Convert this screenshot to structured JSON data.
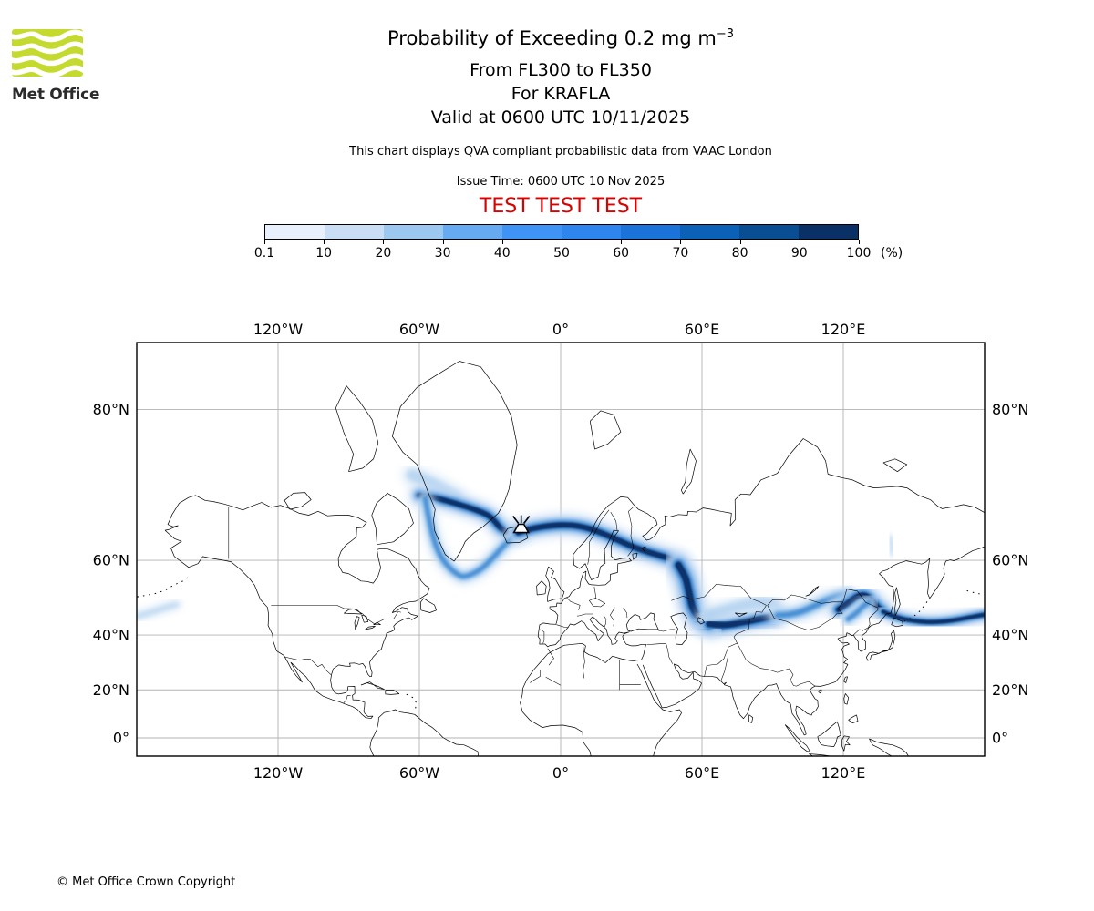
{
  "header": {
    "logo_text": "Met Office",
    "logo_green": "#c5da2f",
    "title_main": "Probability of Exceeding 0.2 mg m",
    "title_sup": "−3",
    "line_levels": "From FL300 to FL350",
    "line_volcano": "For KRAFLA",
    "line_valid": "Valid at 0600 UTC 10/11/2025",
    "note": "This chart displays QVA compliant probabilistic data from VAAC London",
    "issue_time": "Issue Time: 0600 UTC 10 Nov 2025",
    "test_banner": "TEST TEST TEST",
    "test_color": "#dd0000"
  },
  "colorbar": {
    "tick_labels": [
      "0.1",
      "10",
      "20",
      "30",
      "40",
      "50",
      "60",
      "70",
      "80",
      "90",
      "100"
    ],
    "unit": "(%)",
    "colors": [
      "#e8f1fb",
      "#c9ddf5",
      "#9cc8ef",
      "#66aaf2",
      "#3f93f4",
      "#2e85ee",
      "#1b72d8",
      "#0a61b6",
      "#094d92",
      "#0a3166"
    ]
  },
  "footer": {
    "copyright": "© Met Office Crown Copyright"
  },
  "chart_data": {
    "type": "heatmap",
    "title": "Probability of Exceeding 0.2 mg m⁻³",
    "subtitle": [
      "From FL300 to FL350",
      "For KRAFLA",
      "Valid at 0600 UTC 10/11/2025"
    ],
    "issue_time": "0600 UTC 10 Nov 2025",
    "legend_position": "top",
    "grid": true,
    "projection": "mercator",
    "lon_range": [
      -180,
      180
    ],
    "lat_range": [
      -7.7,
      84
    ],
    "scale_percent_thresholds": [
      0.1,
      10,
      20,
      30,
      40,
      50,
      60,
      70,
      80,
      90,
      100
    ],
    "scale_unit": "%",
    "lon_ticks": [
      {
        "value": -120,
        "label": "120°W"
      },
      {
        "value": -60,
        "label": "60°W"
      },
      {
        "value": 0,
        "label": "0°"
      },
      {
        "value": 60,
        "label": "60°E"
      },
      {
        "value": 120,
        "label": "120°E"
      }
    ],
    "lat_ticks": [
      {
        "value": 80,
        "label": "80°N"
      },
      {
        "value": 60,
        "label": "60°N"
      },
      {
        "value": 40,
        "label": "40°N"
      },
      {
        "value": 20,
        "label": "20°N"
      },
      {
        "value": 0,
        "label": "0°"
      }
    ],
    "volcano_marker": {
      "name": "KRAFLA",
      "lon": -16.78,
      "lat": 65.73
    },
    "plume_bands": [
      {
        "name": "greenland-fan",
        "intensity": "diffuse",
        "w": 1.6,
        "pts": [
          [
            -63,
            73.8
          ],
          [
            -58,
            73.2
          ],
          [
            -53,
            72.5
          ],
          [
            -48,
            71.6
          ],
          [
            -44,
            70.8
          ]
        ]
      },
      {
        "name": "greenland-cross",
        "intensity": "dense",
        "w": 1.15,
        "pts": [
          [
            -60,
            71.2
          ],
          [
            -54,
            70.9
          ],
          [
            -48,
            70.4
          ],
          [
            -42,
            69.8
          ],
          [
            -36,
            69.1
          ],
          [
            -31,
            68.3
          ],
          [
            -28,
            67.3
          ],
          [
            -25.5,
            66.2
          ],
          [
            -21.5,
            65.1
          ],
          [
            -18,
            65.4
          ]
        ]
      },
      {
        "name": "west-greenland-arc",
        "intensity": "medium",
        "w": 1.0,
        "pts": [
          [
            -57.5,
            70.8
          ],
          [
            -56,
            68
          ],
          [
            -54.5,
            65.3
          ],
          [
            -52.5,
            62.5
          ],
          [
            -50,
            60.2
          ],
          [
            -47,
            58.3
          ],
          [
            -44,
            57
          ],
          [
            -41.5,
            56.4
          ],
          [
            -37.5,
            57
          ],
          [
            -33,
            58.5
          ],
          [
            -28.5,
            60.7
          ],
          [
            -24.5,
            62.8
          ],
          [
            -20.5,
            64.5
          ],
          [
            -18,
            65.4
          ]
        ]
      },
      {
        "name": "main-east-track",
        "intensity": "dense",
        "w": 1.2,
        "pts": [
          [
            -18,
            65.4
          ],
          [
            -12,
            66.1
          ],
          [
            -6,
            66.5
          ],
          [
            0,
            66.7
          ],
          [
            6,
            66.6
          ],
          [
            12,
            66.1
          ],
          [
            18,
            65.2
          ],
          [
            24,
            64.1
          ],
          [
            30,
            62.9
          ],
          [
            36,
            61.9
          ],
          [
            42,
            61
          ],
          [
            47,
            60.2
          ],
          [
            51,
            58.2
          ],
          [
            53.5,
            54.8
          ],
          [
            55,
            51
          ],
          [
            57,
            47.3
          ],
          [
            60,
            44.3
          ],
          [
            64,
            42.8
          ],
          [
            69,
            43
          ],
          [
            74,
            43.7
          ],
          [
            80,
            44.6
          ],
          [
            86,
            45.4
          ],
          [
            92,
            46.1
          ]
        ]
      },
      {
        "name": "wrussia-curl",
        "intensity": "dense",
        "w": 1.5,
        "pts": [
          [
            50,
            59
          ],
          [
            53,
            56
          ],
          [
            54.5,
            52.5
          ],
          [
            56,
            48.5
          ],
          [
            59,
            45.3
          ],
          [
            63,
            43.5
          ]
        ]
      },
      {
        "name": "kazakh-dense",
        "intensity": "dense",
        "w": 1.35,
        "pts": [
          [
            63,
            43.5
          ],
          [
            70,
            43.2
          ],
          [
            77,
            44
          ],
          [
            84,
            45
          ],
          [
            90,
            45.8
          ]
        ]
      },
      {
        "name": "kazakh-halo",
        "intensity": "diffuse",
        "w": 1.5,
        "pts": [
          [
            62,
            46
          ],
          [
            68,
            47.3
          ],
          [
            74,
            48.4
          ],
          [
            80,
            49.3
          ],
          [
            86,
            49.8
          ],
          [
            91,
            49
          ]
        ]
      },
      {
        "name": "asia-mid",
        "intensity": "medium",
        "w": 1.2,
        "pts": [
          [
            92,
            46.1
          ],
          [
            97,
            46.4
          ],
          [
            102,
            47.2
          ],
          [
            107,
            48.6
          ],
          [
            112,
            50.1
          ],
          [
            117,
            51.3
          ],
          [
            122,
            52
          ]
        ]
      },
      {
        "name": "amur-dense",
        "intensity": "dense",
        "w": 1.25,
        "pts": [
          [
            118,
            47.8
          ],
          [
            122,
            49.6
          ],
          [
            126,
            51.4
          ],
          [
            129.5,
            51.6
          ],
          [
            132,
            50.3
          ],
          [
            134.5,
            48.6
          ],
          [
            137,
            47.2
          ]
        ]
      },
      {
        "name": "manchuria-spur",
        "intensity": "medium",
        "w": 1.0,
        "pts": [
          [
            122,
            45
          ],
          [
            125.5,
            46.8
          ],
          [
            128.5,
            48.8
          ],
          [
            131,
            49.8
          ]
        ]
      },
      {
        "name": "pacific-east",
        "intensity": "dense",
        "w": 0.85,
        "pts": [
          [
            137,
            47.2
          ],
          [
            141,
            46
          ],
          [
            146,
            45
          ],
          [
            151,
            44.4
          ],
          [
            157,
            44.1
          ],
          [
            163,
            44.3
          ],
          [
            169,
            44.9
          ],
          [
            175,
            45.7
          ],
          [
            180,
            46.3
          ]
        ]
      },
      {
        "name": "pacific-wrap-west-edge",
        "intensity": "diffuse",
        "w": 0.7,
        "pts": [
          [
            -180,
            45.8
          ],
          [
            -174,
            47
          ],
          [
            -168,
            48.3
          ],
          [
            -163,
            49.2
          ]
        ]
      },
      {
        "name": "sakhalin-speck",
        "intensity": "diffuse",
        "w": 0.55,
        "pts": [
          [
            140,
            64.5
          ],
          [
            140.8,
            63
          ],
          [
            140.5,
            61.5
          ]
        ]
      }
    ]
  }
}
